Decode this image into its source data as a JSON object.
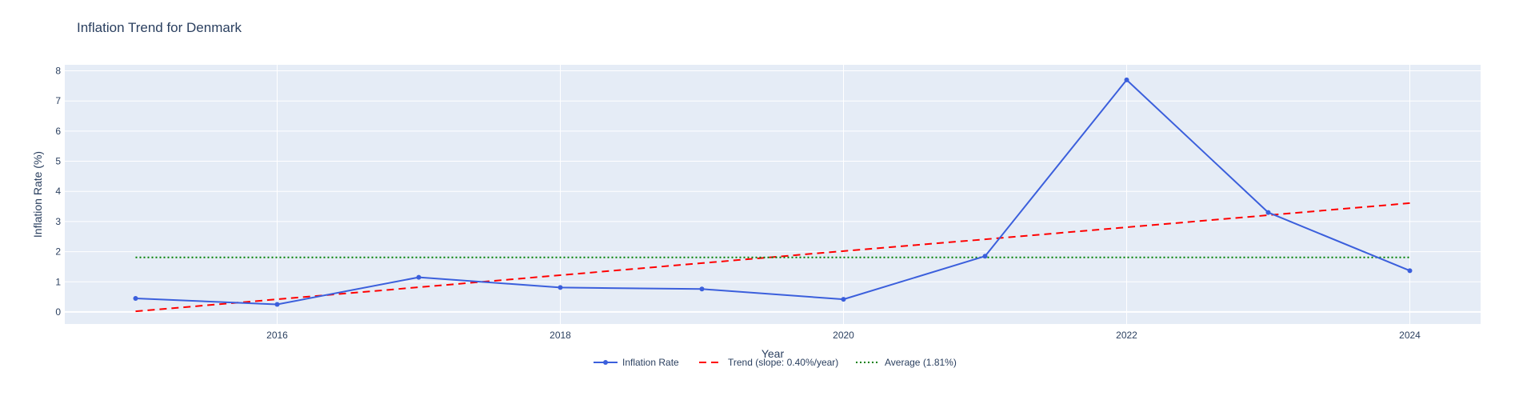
{
  "chart_data": {
    "type": "line",
    "title": "Inflation Trend for Denmark",
    "xlabel": "Year",
    "ylabel": "Inflation Rate (%)",
    "xlim": [
      2014.5,
      2024.5
    ],
    "ylim": [
      -0.4,
      8.2
    ],
    "x_ticks": [
      2016,
      2018,
      2020,
      2022,
      2024
    ],
    "y_ticks": [
      0,
      1,
      2,
      3,
      4,
      5,
      6,
      7,
      8
    ],
    "grid": true,
    "legend_position": "bottom-center",
    "x": [
      2015,
      2016,
      2017,
      2018,
      2019,
      2020,
      2021,
      2022,
      2023,
      2024
    ],
    "series": [
      {
        "name": "Inflation Rate",
        "style": "lines+markers",
        "color": "#3b5fdc",
        "values": [
          0.45,
          0.25,
          1.15,
          0.81,
          0.76,
          0.42,
          1.85,
          7.7,
          3.3,
          1.37
        ]
      },
      {
        "name": "Trend (slope: 0.40%/year)",
        "style": "dashed",
        "color": "#ff0000",
        "values": [
          0.02,
          0.42,
          0.82,
          1.22,
          1.62,
          2.02,
          2.41,
          2.81,
          3.21,
          3.61
        ]
      },
      {
        "name": "Average (1.81%)",
        "style": "dotted",
        "color": "#008000",
        "values": [
          1.81,
          1.81,
          1.81,
          1.81,
          1.81,
          1.81,
          1.81,
          1.81,
          1.81,
          1.81
        ]
      }
    ]
  },
  "colors": {
    "plot_background": "#e5ecf6",
    "grid": "#ffffff",
    "text": "#2a3f5f"
  }
}
